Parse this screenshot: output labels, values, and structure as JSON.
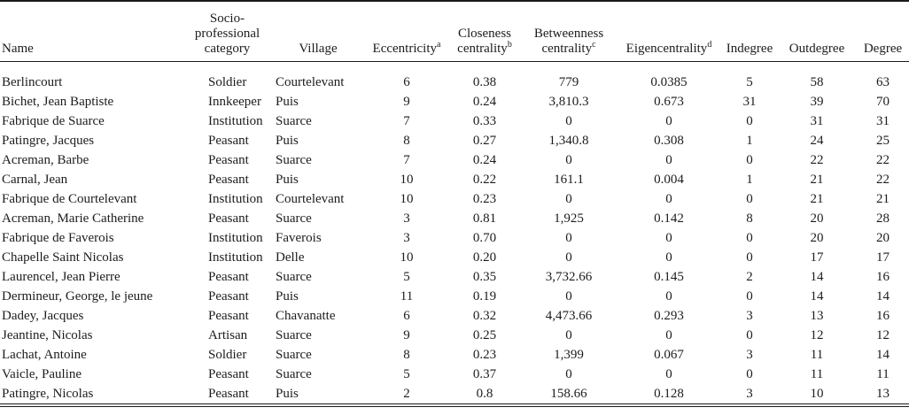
{
  "table": {
    "columns": [
      {
        "key": "name",
        "lines": [
          "Name"
        ],
        "sup": ""
      },
      {
        "key": "category",
        "lines": [
          "Socio-",
          "professional",
          "category"
        ],
        "sup": ""
      },
      {
        "key": "village",
        "lines": [
          "Village"
        ],
        "sup": ""
      },
      {
        "key": "eccentricity",
        "lines": [
          "Eccentricity"
        ],
        "sup": "a"
      },
      {
        "key": "closeness",
        "lines": [
          "Closeness",
          "centrality"
        ],
        "sup": "b"
      },
      {
        "key": "betweenness",
        "lines": [
          "Betweenness",
          "centrality"
        ],
        "sup": "c"
      },
      {
        "key": "eigencentrality",
        "lines": [
          "Eigencentrality"
        ],
        "sup": "d"
      },
      {
        "key": "indegree",
        "lines": [
          "Indegree"
        ],
        "sup": ""
      },
      {
        "key": "outdegree",
        "lines": [
          "Outdegree"
        ],
        "sup": ""
      },
      {
        "key": "degree",
        "lines": [
          "Degree"
        ],
        "sup": ""
      }
    ],
    "rows": [
      [
        "Berlincourt",
        "Soldier",
        "Courtelevant",
        "6",
        "0.38",
        "779",
        "0.0385",
        "5",
        "58",
        "63"
      ],
      [
        "Bichet, Jean Baptiste",
        "Innkeeper",
        "Puis",
        "9",
        "0.24",
        "3,810.3",
        "0.673",
        "31",
        "39",
        "70"
      ],
      [
        "Fabrique de Suarce",
        "Institution",
        "Suarce",
        "7",
        "0.33",
        "0",
        "0",
        "0",
        "31",
        "31"
      ],
      [
        "Patingre, Jacques",
        "Peasant",
        "Puis",
        "8",
        "0.27",
        "1,340.8",
        "0.308",
        "1",
        "24",
        "25"
      ],
      [
        "Acreman, Barbe",
        "Peasant",
        "Suarce",
        "7",
        "0.24",
        "0",
        "0",
        "0",
        "22",
        "22"
      ],
      [
        "Carnal, Jean",
        "Peasant",
        "Puis",
        "10",
        "0.22",
        "161.1",
        "0.004",
        "1",
        "21",
        "22"
      ],
      [
        "Fabrique de Courtelevant",
        "Institution",
        "Courtelevant",
        "10",
        "0.23",
        "0",
        "0",
        "0",
        "21",
        "21"
      ],
      [
        "Acreman, Marie Catherine",
        "Peasant",
        "Suarce",
        "3",
        "0.81",
        "1,925",
        "0.142",
        "8",
        "20",
        "28"
      ],
      [
        "Fabrique de Faverois",
        "Institution",
        "Faverois",
        "3",
        "0.70",
        "0",
        "0",
        "0",
        "20",
        "20"
      ],
      [
        "Chapelle Saint Nicolas",
        "Institution",
        "Delle",
        "10",
        "0.20",
        "0",
        "0",
        "0",
        "17",
        "17"
      ],
      [
        "Laurencel, Jean Pierre",
        "Peasant",
        "Suarce",
        "5",
        "0.35",
        "3,732.66",
        "0.145",
        "2",
        "14",
        "16"
      ],
      [
        "Dermineur, George, le jeune",
        "Peasant",
        "Puis",
        "11",
        "0.19",
        "0",
        "0",
        "0",
        "14",
        "14"
      ],
      [
        "Dadey, Jacques",
        "Peasant",
        "Chavanatte",
        "6",
        "0.32",
        "4,473.66",
        "0.293",
        "3",
        "13",
        "16"
      ],
      [
        "Jeantine, Nicolas",
        "Artisan",
        "Suarce",
        "9",
        "0.25",
        "0",
        "0",
        "0",
        "12",
        "12"
      ],
      [
        "Lachat, Antoine",
        "Soldier",
        "Suarce",
        "8",
        "0.23",
        "1,399",
        "0.067",
        "3",
        "11",
        "14"
      ],
      [
        "Vaicle, Pauline",
        "Peasant",
        "Suarce",
        "5",
        "0.37",
        "0",
        "0",
        "0",
        "11",
        "11"
      ],
      [
        "Patingre, Nicolas",
        "Peasant",
        "Puis",
        "2",
        "0.8",
        "158.66",
        "0.128",
        "3",
        "10",
        "13"
      ]
    ]
  }
}
